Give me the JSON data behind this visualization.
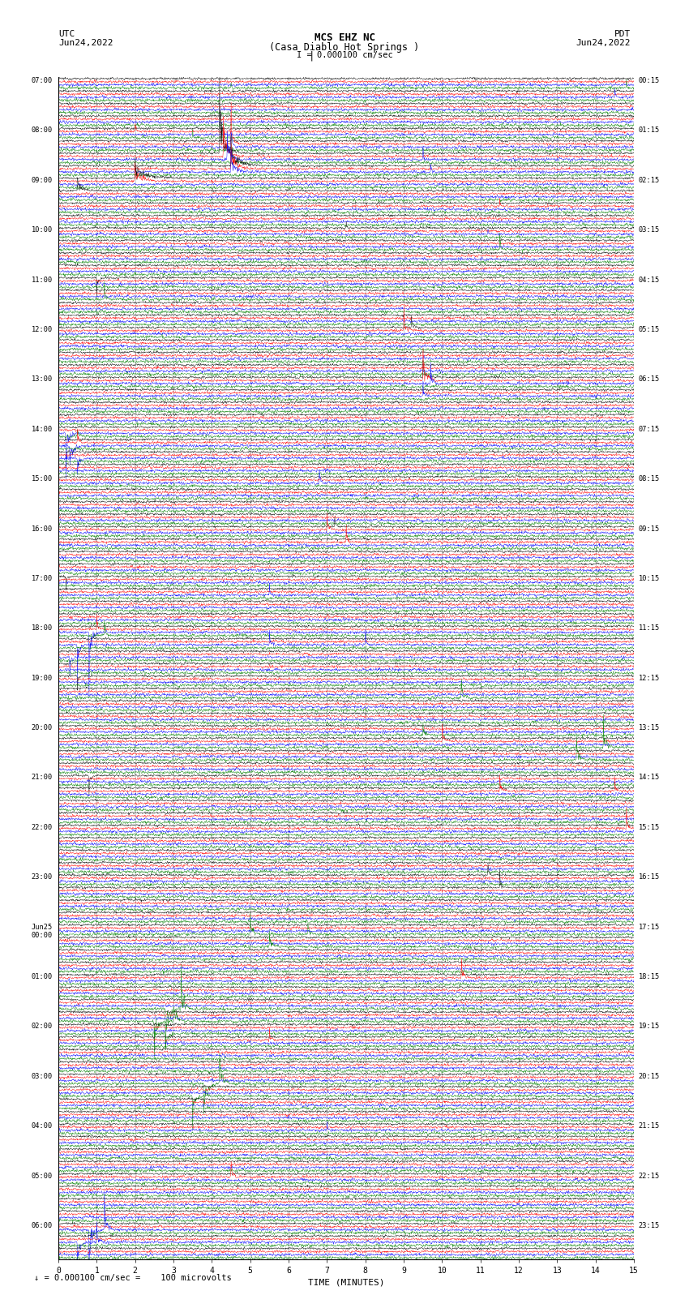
{
  "title_line1": "MCS EHZ NC",
  "title_line2": "(Casa Diablo Hot Springs )",
  "scale_label": "I = 0.000100 cm/sec",
  "footer_label": "= 0.000100 cm/sec =    100 microvolts",
  "utc_label": "UTC",
  "utc_date": "Jun24,2022",
  "pdt_label": "PDT",
  "pdt_date": "Jun24,2022",
  "xlabel": "TIME (MINUTES)",
  "bg_color": "#ffffff",
  "trace_colors": [
    "black",
    "red",
    "blue",
    "green"
  ],
  "left_times": [
    "07:00",
    "",
    "",
    "",
    "08:00",
    "",
    "",
    "",
    "09:00",
    "",
    "",
    "",
    "10:00",
    "",
    "",
    "",
    "11:00",
    "",
    "",
    "",
    "12:00",
    "",
    "",
    "",
    "13:00",
    "",
    "",
    "",
    "14:00",
    "",
    "",
    "",
    "15:00",
    "",
    "",
    "",
    "16:00",
    "",
    "",
    "",
    "17:00",
    "",
    "",
    "",
    "18:00",
    "",
    "",
    "",
    "19:00",
    "",
    "",
    "",
    "20:00",
    "",
    "",
    "",
    "21:00",
    "",
    "",
    "",
    "22:00",
    "",
    "",
    "",
    "23:00",
    "",
    "",
    "",
    "Jun25\n00:00",
    "",
    "",
    "",
    "01:00",
    "",
    "",
    "",
    "02:00",
    "",
    "",
    "",
    "03:00",
    "",
    "",
    "",
    "04:00",
    "",
    "",
    "",
    "05:00",
    "",
    "",
    "",
    "06:00",
    "",
    ""
  ],
  "right_times": [
    "00:15",
    "",
    "",
    "",
    "01:15",
    "",
    "",
    "",
    "02:15",
    "",
    "",
    "",
    "03:15",
    "",
    "",
    "",
    "04:15",
    "",
    "",
    "",
    "05:15",
    "",
    "",
    "",
    "06:15",
    "",
    "",
    "",
    "07:15",
    "",
    "",
    "",
    "08:15",
    "",
    "",
    "",
    "09:15",
    "",
    "",
    "",
    "10:15",
    "",
    "",
    "",
    "11:15",
    "",
    "",
    "",
    "12:15",
    "",
    "",
    "",
    "13:15",
    "",
    "",
    "",
    "14:15",
    "",
    "",
    "",
    "15:15",
    "",
    "",
    "",
    "16:15",
    "",
    "",
    "",
    "17:15",
    "",
    "",
    "",
    "18:15",
    "",
    "",
    "",
    "19:15",
    "",
    "",
    "",
    "20:15",
    "",
    "",
    "",
    "21:15",
    "",
    "",
    "",
    "22:15",
    "",
    "",
    "",
    "23:15",
    "",
    ""
  ],
  "n_rows": 95,
  "n_traces_per_row": 4,
  "minutes": 15,
  "noise_amplitude": 0.28,
  "seed": 12345
}
